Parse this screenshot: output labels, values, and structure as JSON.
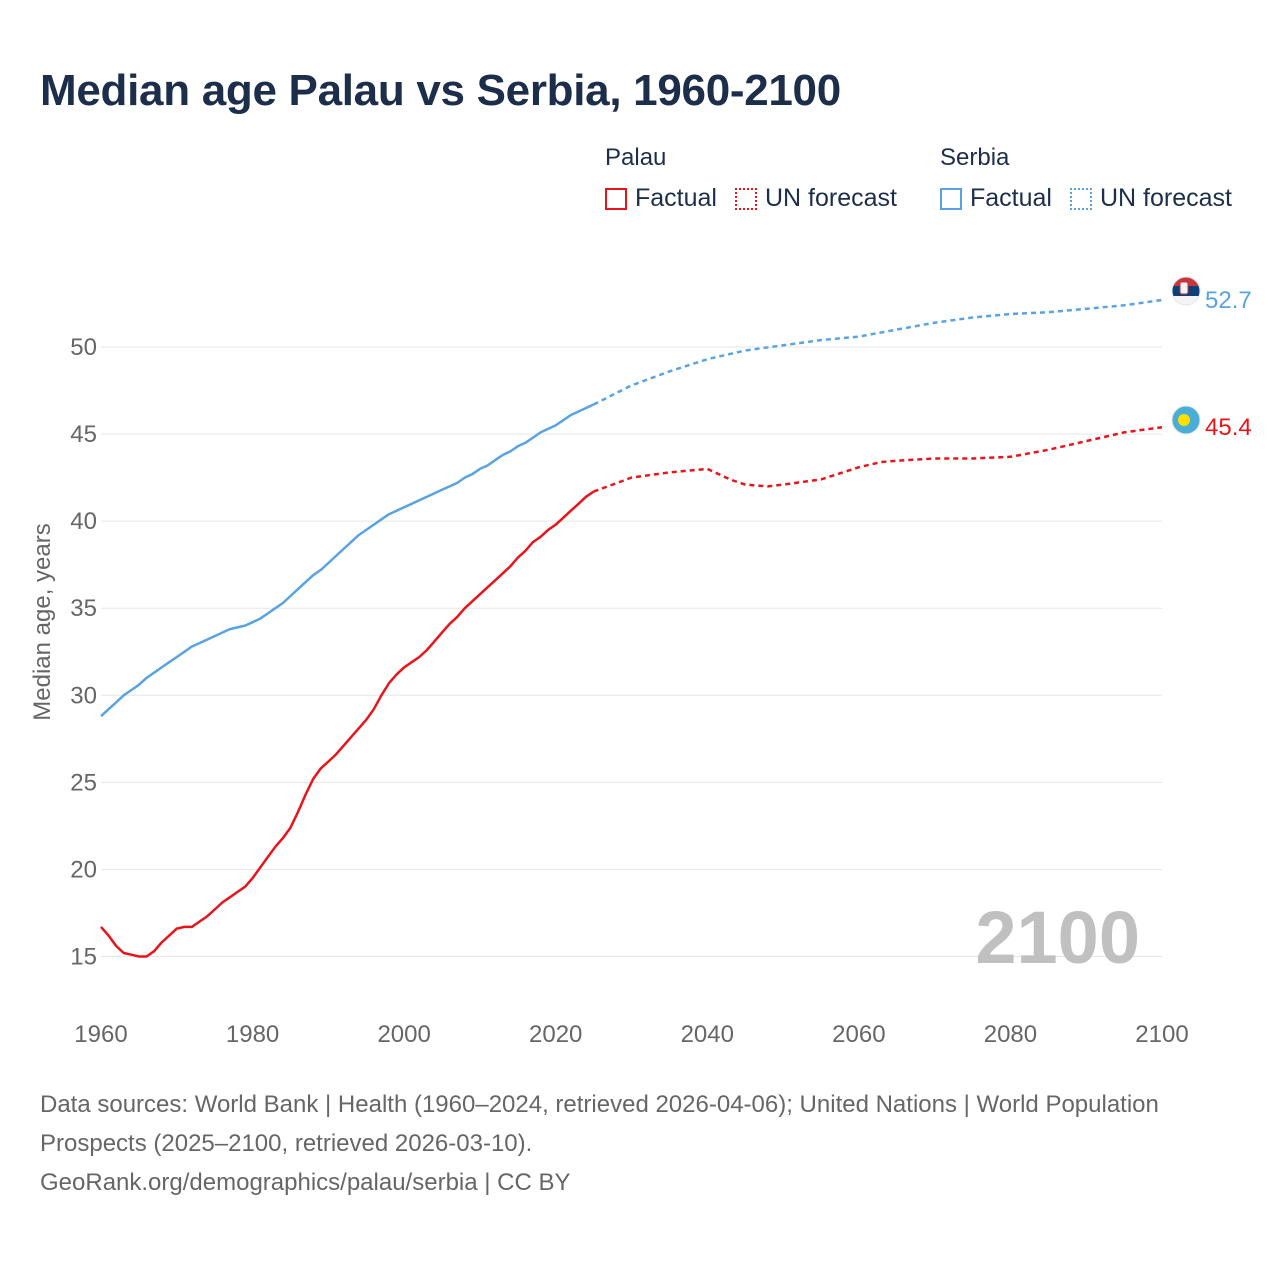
{
  "title": "Median age Palau vs Serbia, 1960-2100",
  "legend": {
    "groups": [
      {
        "country": "Palau",
        "factual": "Factual",
        "forecast": "UN forecast",
        "color": "#e8141c"
      },
      {
        "country": "Serbia",
        "factual": "Factual",
        "forecast": "UN forecast",
        "color": "#5ba3e0"
      }
    ]
  },
  "chart_data": {
    "type": "line",
    "title": "Median age Palau vs Serbia, 1960-2100",
    "xlabel": "",
    "ylabel": "Median age, years",
    "xlim": [
      1960,
      2100
    ],
    "ylim": [
      12.5,
      55
    ],
    "xticks": [
      1960,
      1980,
      2000,
      2020,
      2040,
      2060,
      2080,
      2100
    ],
    "yticks": [
      15,
      20,
      25,
      30,
      35,
      40,
      45,
      50
    ],
    "grid": true,
    "year_watermark": "2100",
    "factual_until": 2024,
    "series": [
      {
        "name": "Palau",
        "color": "#e8141c",
        "end_label": "45.4",
        "points": [
          [
            1960,
            16.7
          ],
          [
            1961,
            16.2
          ],
          [
            1962,
            15.6
          ],
          [
            1963,
            15.2
          ],
          [
            1964,
            15.1
          ],
          [
            1965,
            15.0
          ],
          [
            1966,
            15.0
          ],
          [
            1967,
            15.3
          ],
          [
            1968,
            15.8
          ],
          [
            1969,
            16.2
          ],
          [
            1970,
            16.6
          ],
          [
            1971,
            16.7
          ],
          [
            1972,
            16.7
          ],
          [
            1973,
            17.0
          ],
          [
            1974,
            17.3
          ],
          [
            1975,
            17.7
          ],
          [
            1976,
            18.1
          ],
          [
            1977,
            18.4
          ],
          [
            1978,
            18.7
          ],
          [
            1979,
            19.0
          ],
          [
            1980,
            19.5
          ],
          [
            1981,
            20.1
          ],
          [
            1982,
            20.7
          ],
          [
            1983,
            21.3
          ],
          [
            1984,
            21.8
          ],
          [
            1985,
            22.4
          ],
          [
            1986,
            23.3
          ],
          [
            1987,
            24.3
          ],
          [
            1988,
            25.2
          ],
          [
            1989,
            25.8
          ],
          [
            1990,
            26.2
          ],
          [
            1991,
            26.6
          ],
          [
            1992,
            27.1
          ],
          [
            1993,
            27.6
          ],
          [
            1994,
            28.1
          ],
          [
            1995,
            28.6
          ],
          [
            1996,
            29.2
          ],
          [
            1997,
            30.0
          ],
          [
            1998,
            30.7
          ],
          [
            1999,
            31.2
          ],
          [
            2000,
            31.6
          ],
          [
            2001,
            31.9
          ],
          [
            2002,
            32.2
          ],
          [
            2003,
            32.6
          ],
          [
            2004,
            33.1
          ],
          [
            2005,
            33.6
          ],
          [
            2006,
            34.1
          ],
          [
            2007,
            34.5
          ],
          [
            2008,
            35.0
          ],
          [
            2009,
            35.4
          ],
          [
            2010,
            35.8
          ],
          [
            2011,
            36.2
          ],
          [
            2012,
            36.6
          ],
          [
            2013,
            37.0
          ],
          [
            2014,
            37.4
          ],
          [
            2015,
            37.9
          ],
          [
            2016,
            38.3
          ],
          [
            2017,
            38.8
          ],
          [
            2018,
            39.1
          ],
          [
            2019,
            39.5
          ],
          [
            2020,
            39.8
          ],
          [
            2021,
            40.2
          ],
          [
            2022,
            40.6
          ],
          [
            2023,
            41.0
          ],
          [
            2024,
            41.4
          ],
          [
            2025,
            41.7
          ],
          [
            2030,
            42.5
          ],
          [
            2035,
            42.8
          ],
          [
            2040,
            43.0
          ],
          [
            2043,
            42.4
          ],
          [
            2045,
            42.1
          ],
          [
            2048,
            42.0
          ],
          [
            2050,
            42.1
          ],
          [
            2055,
            42.4
          ],
          [
            2060,
            43.1
          ],
          [
            2063,
            43.4
          ],
          [
            2066,
            43.5
          ],
          [
            2070,
            43.6
          ],
          [
            2075,
            43.6
          ],
          [
            2080,
            43.7
          ],
          [
            2085,
            44.1
          ],
          [
            2090,
            44.6
          ],
          [
            2095,
            45.1
          ],
          [
            2100,
            45.4
          ]
        ]
      },
      {
        "name": "Serbia",
        "color": "#5ba3e0",
        "end_label": "52.7",
        "points": [
          [
            1960,
            28.8
          ],
          [
            1961,
            29.2
          ],
          [
            1962,
            29.6
          ],
          [
            1963,
            30.0
          ],
          [
            1964,
            30.3
          ],
          [
            1965,
            30.6
          ],
          [
            1966,
            31.0
          ],
          [
            1967,
            31.3
          ],
          [
            1968,
            31.6
          ],
          [
            1969,
            31.9
          ],
          [
            1970,
            32.2
          ],
          [
            1971,
            32.5
          ],
          [
            1972,
            32.8
          ],
          [
            1973,
            33.0
          ],
          [
            1974,
            33.2
          ],
          [
            1975,
            33.4
          ],
          [
            1976,
            33.6
          ],
          [
            1977,
            33.8
          ],
          [
            1978,
            33.9
          ],
          [
            1979,
            34.0
          ],
          [
            1980,
            34.2
          ],
          [
            1981,
            34.4
          ],
          [
            1982,
            34.7
          ],
          [
            1983,
            35.0
          ],
          [
            1984,
            35.3
          ],
          [
            1985,
            35.7
          ],
          [
            1986,
            36.1
          ],
          [
            1987,
            36.5
          ],
          [
            1988,
            36.9
          ],
          [
            1989,
            37.2
          ],
          [
            1990,
            37.6
          ],
          [
            1991,
            38.0
          ],
          [
            1992,
            38.4
          ],
          [
            1993,
            38.8
          ],
          [
            1994,
            39.2
          ],
          [
            1995,
            39.5
          ],
          [
            1996,
            39.8
          ],
          [
            1997,
            40.1
          ],
          [
            1998,
            40.4
          ],
          [
            1999,
            40.6
          ],
          [
            2000,
            40.8
          ],
          [
            2001,
            41.0
          ],
          [
            2002,
            41.2
          ],
          [
            2003,
            41.4
          ],
          [
            2004,
            41.6
          ],
          [
            2005,
            41.8
          ],
          [
            2006,
            42.0
          ],
          [
            2007,
            42.2
          ],
          [
            2008,
            42.5
          ],
          [
            2009,
            42.7
          ],
          [
            2010,
            43.0
          ],
          [
            2011,
            43.2
          ],
          [
            2012,
            43.5
          ],
          [
            2013,
            43.8
          ],
          [
            2014,
            44.0
          ],
          [
            2015,
            44.3
          ],
          [
            2016,
            44.5
          ],
          [
            2017,
            44.8
          ],
          [
            2018,
            45.1
          ],
          [
            2019,
            45.3
          ],
          [
            2020,
            45.5
          ],
          [
            2021,
            45.8
          ],
          [
            2022,
            46.1
          ],
          [
            2023,
            46.3
          ],
          [
            2024,
            46.5
          ],
          [
            2025,
            46.7
          ],
          [
            2030,
            47.8
          ],
          [
            2035,
            48.6
          ],
          [
            2040,
            49.3
          ],
          [
            2045,
            49.8
          ],
          [
            2050,
            50.1
          ],
          [
            2055,
            50.4
          ],
          [
            2060,
            50.6
          ],
          [
            2065,
            51.0
          ],
          [
            2070,
            51.4
          ],
          [
            2075,
            51.7
          ],
          [
            2080,
            51.9
          ],
          [
            2085,
            52.0
          ],
          [
            2090,
            52.2
          ],
          [
            2095,
            52.4
          ],
          [
            2100,
            52.7
          ]
        ]
      }
    ]
  },
  "footer": {
    "sources": "Data sources: World Bank | Health (1960–2024, retrieved 2026-04-06); United Nations | World Population Prospects (2025–2100, retrieved 2026-03-10).",
    "credit": "GeoRank.org/demographics/palau/serbia | CC BY"
  }
}
